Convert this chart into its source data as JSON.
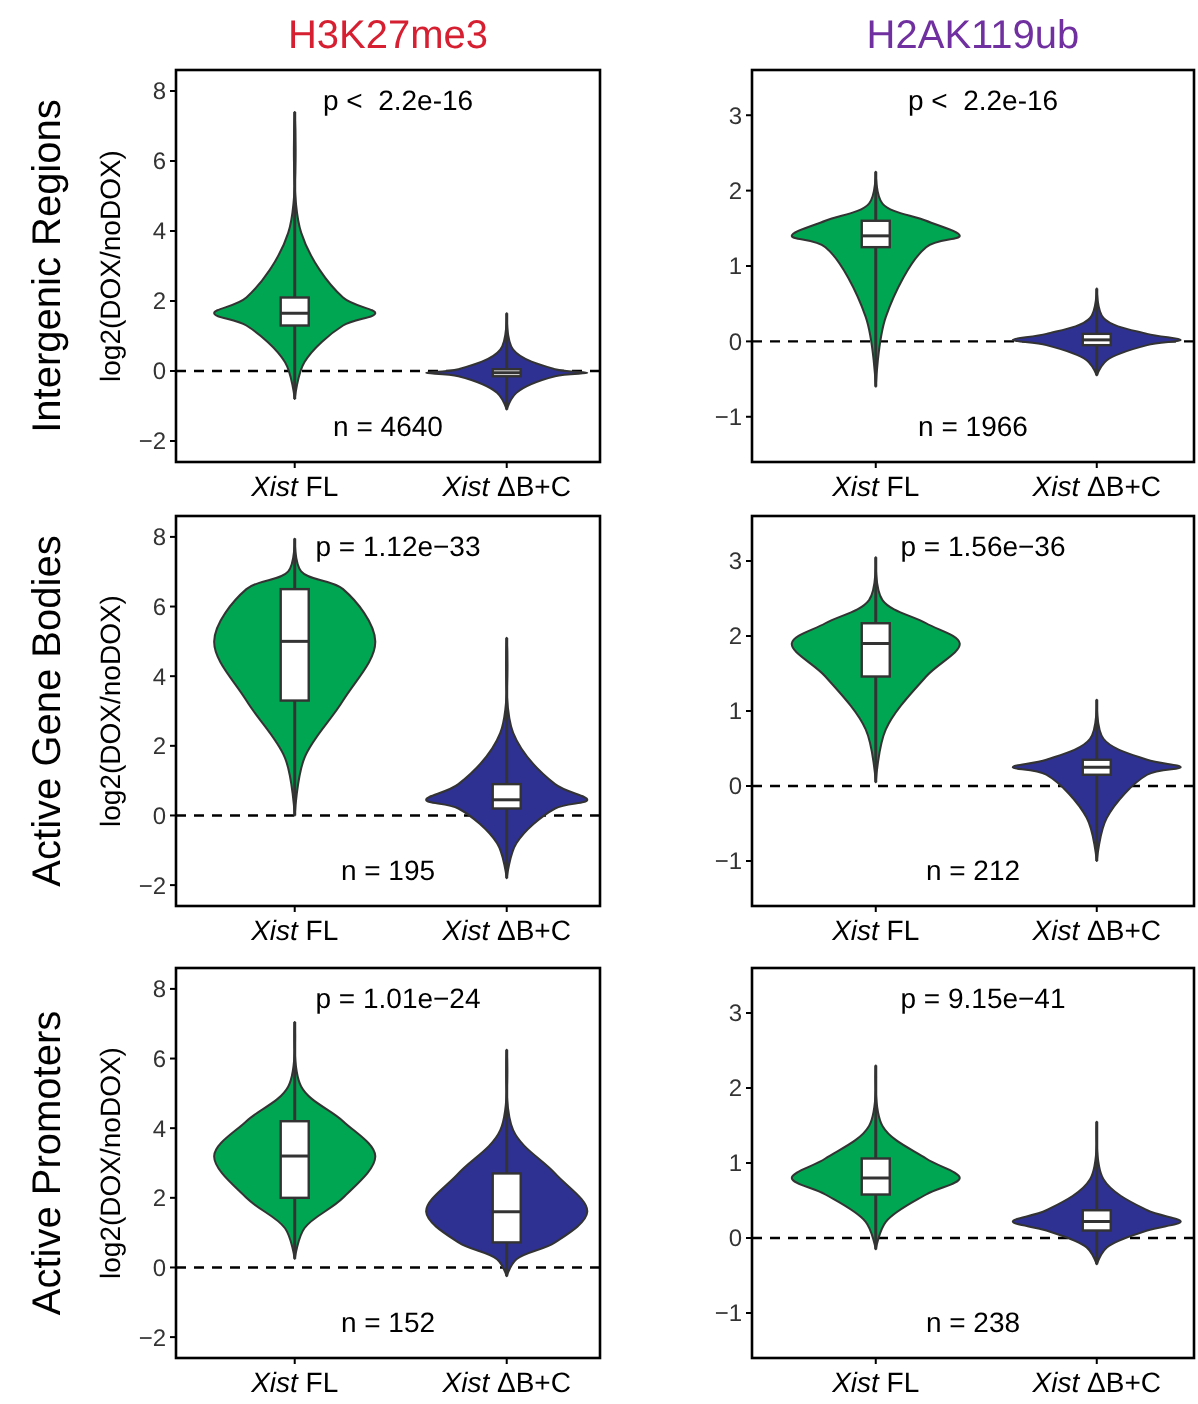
{
  "chart_data": [
    {
      "type": "box",
      "title": "H3K27me3",
      "ylabel": "log2(DOX/noDOX)",
      "categories": [
        "Xist FL",
        "Xist ΔB+C"
      ],
      "colors": [
        "#ffffff",
        "#ffffff"
      ],
      "ylim": [
        -2.6,
        8.6
      ],
      "yticks": [
        -2,
        0,
        2,
        4,
        6,
        8
      ],
      "ref_lines": [
        {
          "axis": "y",
          "value": 0,
          "line_style": "dashed"
        }
      ],
      "annotations": [
        "p <  2.2e-16",
        "n = 4640",
        "Intergenic Regions"
      ],
      "boxes": [
        {
          "low": -0.8,
          "q1": 1.3,
          "median": 1.65,
          "q3": 2.1,
          "high": 7.4
        },
        {
          "low": -1.1,
          "q1": -0.15,
          "median": -0.05,
          "q3": 0.05,
          "high": 1.65
        }
      ]
    },
    {
      "type": "box",
      "title": "H2AK119ub",
      "categories": [
        "Xist FL",
        "Xist ΔB+C"
      ],
      "colors": [
        "#ffffff",
        "#ffffff"
      ],
      "ylim": [
        -1.6,
        3.6
      ],
      "yticks": [
        -1,
        0,
        1,
        2,
        3
      ],
      "ref_lines": [
        {
          "axis": "y",
          "value": 0,
          "line_style": "dashed"
        }
      ],
      "annotations": [
        "p <  2.2e-16",
        "n = 1966"
      ],
      "boxes": [
        {
          "low": -0.6,
          "q1": 1.25,
          "median": 1.4,
          "q3": 1.6,
          "high": 2.25
        },
        {
          "low": -0.45,
          "q1": -0.05,
          "median": 0.02,
          "q3": 0.1,
          "high": 0.7
        }
      ]
    },
    {
      "type": "box",
      "ylabel": "log2(DOX/noDOX)",
      "categories": [
        "Xist FL",
        "Xist ΔB+C"
      ],
      "colors": [
        "#ffffff",
        "#ffffff"
      ],
      "ylim": [
        -2.6,
        8.6
      ],
      "yticks": [
        -2,
        0,
        2,
        4,
        6,
        8
      ],
      "ref_lines": [
        {
          "axis": "y",
          "value": 0,
          "line_style": "dashed"
        }
      ],
      "annotations": [
        "p = 1.12e−33",
        "n = 195",
        "Active Gene Bodies"
      ],
      "boxes": [
        {
          "low": 0,
          "q1": 3.3,
          "median": 5,
          "q3": 6.5,
          "high": 7.95
        },
        {
          "low": -1.8,
          "q1": 0.2,
          "median": 0.45,
          "q3": 0.9,
          "high": 5.1
        }
      ]
    },
    {
      "type": "box",
      "categories": [
        "Xist FL",
        "Xist ΔB+C"
      ],
      "colors": [
        "#ffffff",
        "#ffffff"
      ],
      "ylim": [
        -1.6,
        3.6
      ],
      "yticks": [
        -1,
        0,
        1,
        2,
        3
      ],
      "ref_lines": [
        {
          "axis": "y",
          "value": 0,
          "line_style": "dashed"
        }
      ],
      "annotations": [
        "p = 1.56e−36",
        "n = 212"
      ],
      "boxes": [
        {
          "low": 0.05,
          "q1": 1.46,
          "median": 1.9,
          "q3": 2.17,
          "high": 3.05
        },
        {
          "low": -1,
          "q1": 0.15,
          "median": 0.25,
          "q3": 0.35,
          "high": 1.15
        }
      ]
    },
    {
      "type": "box",
      "ylabel": "log2(DOX/noDOX)",
      "categories": [
        "Xist FL",
        "Xist ΔB+C"
      ],
      "colors": [
        "#ffffff",
        "#ffffff"
      ],
      "ylim": [
        -2.6,
        8.6
      ],
      "yticks": [
        -2,
        0,
        2,
        4,
        6,
        8
      ],
      "ref_lines": [
        {
          "axis": "y",
          "value": 0,
          "line_style": "dashed"
        }
      ],
      "annotations": [
        "p = 1.01e−24",
        "n = 152",
        "Active Promoters"
      ],
      "boxes": [
        {
          "low": 0.25,
          "q1": 2,
          "median": 3.2,
          "q3": 4.2,
          "high": 7.05
        },
        {
          "low": -0.25,
          "q1": 0.72,
          "median": 1.6,
          "q3": 2.7,
          "high": 6.25
        }
      ]
    },
    {
      "type": "box",
      "categories": [
        "Xist FL",
        "Xist ΔB+C"
      ],
      "colors": [
        "#ffffff",
        "#ffffff"
      ],
      "ylim": [
        -1.6,
        3.6
      ],
      "yticks": [
        -1,
        0,
        1,
        2,
        3
      ],
      "ref_lines": [
        {
          "axis": "y",
          "value": 0,
          "line_style": "dashed"
        }
      ],
      "annotations": [
        "p = 9.15e−41",
        "n = 238"
      ],
      "boxes": [
        {
          "low": -0.15,
          "q1": 0.58,
          "median": 0.8,
          "q3": 1.06,
          "high": 2.3
        },
        {
          "low": -0.35,
          "q1": 0.1,
          "median": 0.22,
          "q3": 0.37,
          "high": 1.55
        }
      ]
    }
  ]
}
